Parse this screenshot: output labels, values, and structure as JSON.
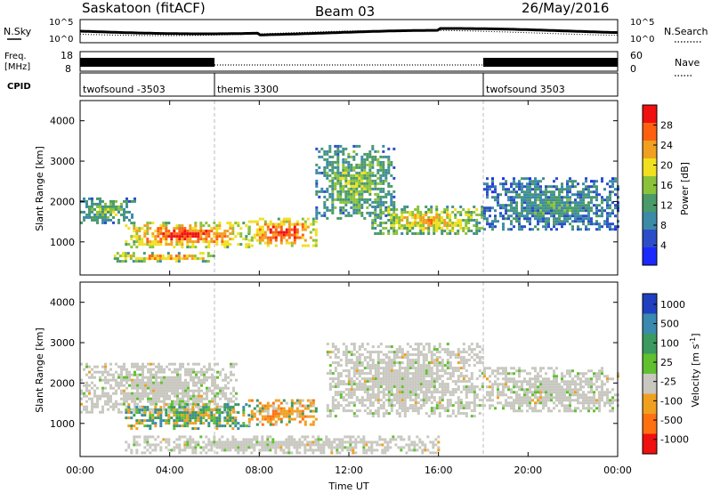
{
  "header": {
    "station": "Saskatoon (fitACF)",
    "beam": "Beam 03",
    "date": "26/May/2016"
  },
  "panels": {
    "nsky": {
      "left_label": "N.Sky",
      "right_label": "N.Search",
      "left_ticks": [
        "10^5",
        "10^0"
      ],
      "right_ticks": [
        "10^5",
        "10^0"
      ]
    },
    "freq": {
      "left_label_top": "Freq.",
      "left_label_unit": "[MHz]",
      "right_label": "Nave",
      "left_ticks": [
        "18",
        "8"
      ],
      "right_ticks": [
        "60",
        "0"
      ]
    },
    "cpid": {
      "label": "CPID",
      "segments": [
        {
          "name": "twofsound -3503",
          "start_h": 0,
          "end_h": 6
        },
        {
          "name": "themis 3300",
          "start_h": 6,
          "end_h": 18
        },
        {
          "name": "twofsound 3503",
          "start_h": 18,
          "end_h": 24
        }
      ]
    }
  },
  "chart_data": [
    {
      "type": "heatmap",
      "title": "",
      "xlabel": "Time UT",
      "ylabel": "Slant Range [km]",
      "xlim": [
        0,
        24
      ],
      "ylim": [
        180,
        4500
      ],
      "yticks": [
        1000,
        2000,
        3000,
        4000
      ],
      "colorbar": {
        "label": "Power [dB]",
        "ticks": [
          "4",
          "8",
          "12",
          "16",
          "20",
          "24",
          "28"
        ],
        "range": [
          0,
          30
        ],
        "colors": [
          "#1a2aff",
          "#2b4ec8",
          "#3d8aa8",
          "#4a9a6a",
          "#8ac23a",
          "#f0e020",
          "#f0a020",
          "#ff6010",
          "#f01010"
        ]
      },
      "echo_bands": [
        {
          "t": [
            0,
            2.5
          ],
          "range": [
            1500,
            2100
          ],
          "power_db": 14
        },
        {
          "t": [
            2,
            7.5
          ],
          "range": [
            900,
            1500
          ],
          "power_db": 28
        },
        {
          "t": [
            7.5,
            10.5
          ],
          "range": [
            900,
            1600
          ],
          "power_db": 29
        },
        {
          "t": [
            1.5,
            6
          ],
          "range": [
            550,
            750
          ],
          "power_db": 24
        },
        {
          "t": [
            10.5,
            14
          ],
          "range": [
            1600,
            3400
          ],
          "power_db": 14
        },
        {
          "t": [
            13,
            18
          ],
          "range": [
            1200,
            1900
          ],
          "power_db": 20
        },
        {
          "t": [
            18,
            24
          ],
          "range": [
            1300,
            2600
          ],
          "power_db": 10
        }
      ]
    },
    {
      "type": "heatmap",
      "title": "",
      "xlabel": "Time UT",
      "ylabel": "Slant Range [km]",
      "xlim": [
        0,
        24
      ],
      "ylim": [
        180,
        4500
      ],
      "yticks": [
        1000,
        2000,
        3000,
        4000
      ],
      "colorbar": {
        "label": "Velocity [m s^-1]",
        "ticks": [
          "1000",
          "500",
          "100",
          "25",
          "-25",
          "-100",
          "-500",
          "-1000"
        ],
        "colors": [
          "#2040c0",
          "#3a8ab0",
          "#3a9a60",
          "#60c030",
          "#c8c8c0",
          "#f0a020",
          "#ff7010",
          "#f01010"
        ]
      },
      "echo_bands": [
        {
          "t": [
            0,
            7
          ],
          "range": [
            1300,
            2500
          ],
          "velocity": 0
        },
        {
          "t": [
            2,
            7.5
          ],
          "range": [
            900,
            1500
          ],
          "velocity": 150
        },
        {
          "t": [
            7.5,
            10.5
          ],
          "range": [
            1000,
            1600
          ],
          "velocity": -100
        },
        {
          "t": [
            11,
            18
          ],
          "range": [
            1200,
            3000
          ],
          "velocity": 0
        },
        {
          "t": [
            18,
            24
          ],
          "range": [
            1300,
            2400
          ],
          "velocity": 0
        },
        {
          "t": [
            2,
            16
          ],
          "range": [
            300,
            700
          ],
          "velocity": 0
        }
      ]
    }
  ],
  "xaxis": {
    "label": "Time UT",
    "ticks": [
      "00:00",
      "04:00",
      "08:00",
      "12:00",
      "16:00",
      "20:00",
      "00:00"
    ],
    "tick_hours": [
      0,
      4,
      8,
      12,
      16,
      20,
      24
    ]
  }
}
